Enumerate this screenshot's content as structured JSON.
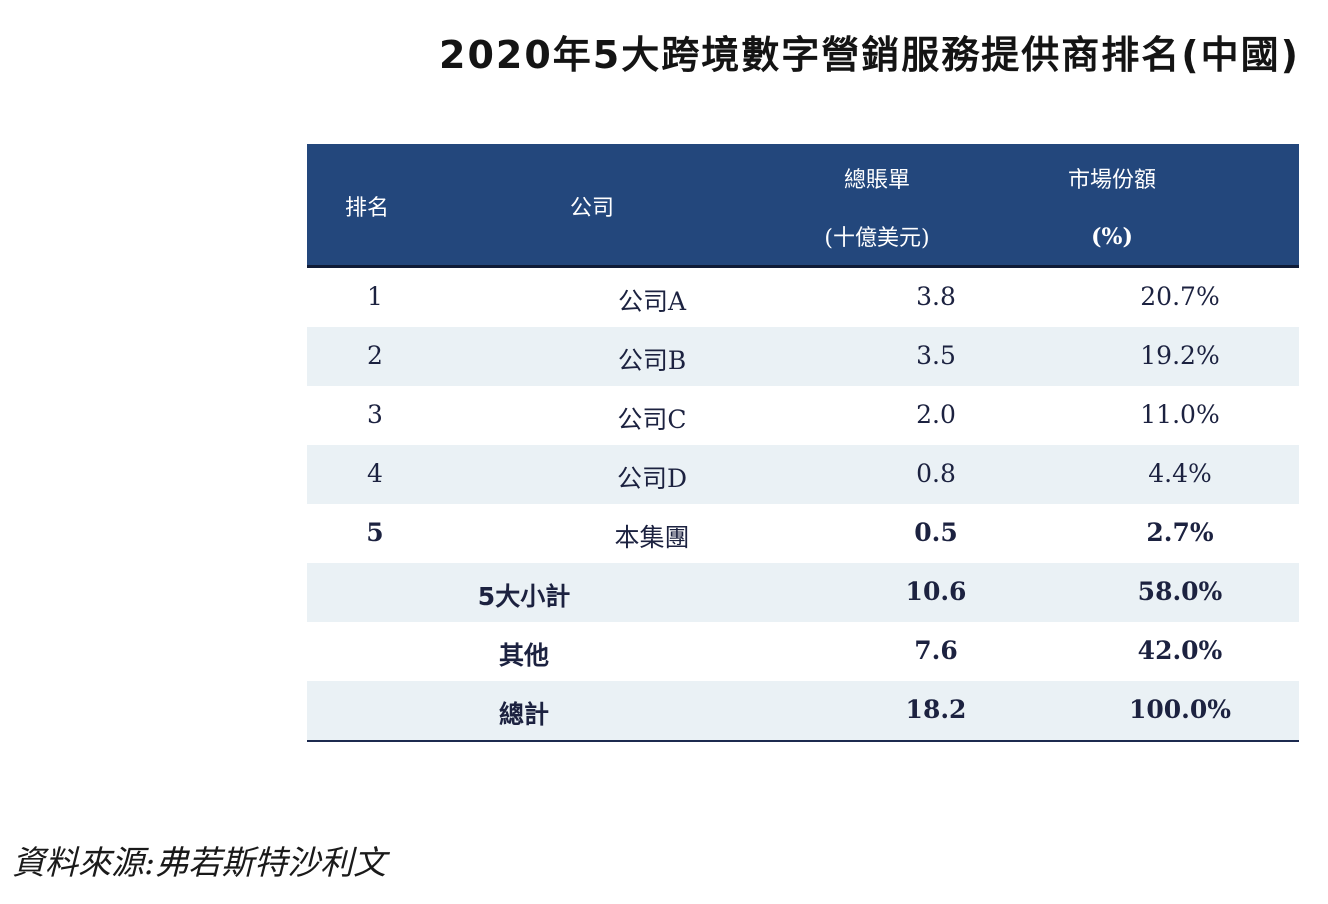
{
  "title": "2020年5大跨境數字營銷服務提供商排名(中國)",
  "table": {
    "headers": {
      "rank": "排名",
      "company": "公司",
      "billing": "總賬單",
      "billing_unit": "(十億美元)",
      "share": "市場份額",
      "share_unit": "(%)"
    },
    "rows": [
      {
        "rank": "1",
        "company": "公司A",
        "billing": "3.8",
        "share": "20.7%"
      },
      {
        "rank": "2",
        "company": "公司B",
        "billing": "3.5",
        "share": "19.2%"
      },
      {
        "rank": "3",
        "company": "公司C",
        "billing": "2.0",
        "share": "11.0%"
      },
      {
        "rank": "4",
        "company": "公司D",
        "billing": "0.8",
        "share": "4.4%"
      },
      {
        "rank": "5",
        "company": "本集團",
        "billing": "0.5",
        "share": "2.7%"
      }
    ],
    "summary": [
      {
        "label": "5大小計",
        "billing": "10.6",
        "share": "58.0%"
      },
      {
        "label": "其他",
        "billing": "7.6",
        "share": "42.0%"
      },
      {
        "label": "總計",
        "billing": "18.2",
        "share": "100.0%"
      }
    ]
  },
  "source": "資料來源:弗若斯特沙利文",
  "colors": {
    "header_bg": "#23477c",
    "row_shade": "#eaf1f5",
    "text": "#1c2240"
  }
}
